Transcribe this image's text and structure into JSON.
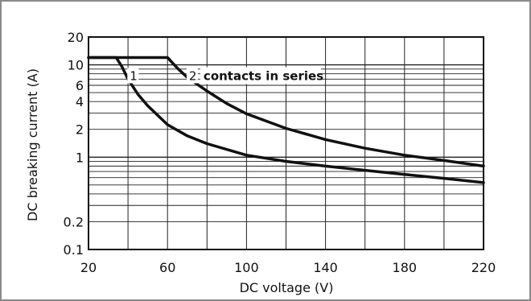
{
  "chart_data": {
    "type": "line",
    "xlabel": "DC voltage (V)",
    "ylabel": "DC breaking current (A)",
    "x_scale": "linear",
    "y_scale": "log",
    "xlim": [
      20,
      220
    ],
    "ylim": [
      0.1,
      20
    ],
    "x_ticks": [
      20,
      60,
      100,
      140,
      180,
      220
    ],
    "x_tick_labels": [
      "20",
      "60",
      "100",
      "140",
      "180",
      "220"
    ],
    "y_ticks": [
      0.1,
      0.2,
      1,
      2,
      4,
      6,
      10,
      20
    ],
    "y_tick_labels": [
      "0.1",
      "0.2",
      "1",
      "2",
      "4",
      "6",
      "10",
      "20"
    ],
    "grid": true,
    "annotation": "contacts in series",
    "series": [
      {
        "name": "1",
        "x": [
          20,
          34,
          37,
          40,
          45,
          50,
          60,
          70,
          80,
          100,
          120,
          140,
          160,
          180,
          200,
          220
        ],
        "y": [
          12,
          12,
          9.5,
          7,
          4.8,
          3.6,
          2.25,
          1.7,
          1.4,
          1.05,
          0.9,
          0.8,
          0.72,
          0.65,
          0.59,
          0.53
        ]
      },
      {
        "name": "2",
        "x": [
          20,
          60,
          65,
          70,
          80,
          90,
          100,
          120,
          140,
          160,
          180,
          200,
          220
        ],
        "y": [
          12,
          12,
          9.2,
          7.3,
          5.2,
          3.8,
          2.95,
          2.05,
          1.55,
          1.25,
          1.05,
          0.92,
          0.8
        ]
      }
    ],
    "colors": {
      "frame": "#8a8a8a",
      "line": "#111111",
      "grid": "#222222"
    }
  }
}
